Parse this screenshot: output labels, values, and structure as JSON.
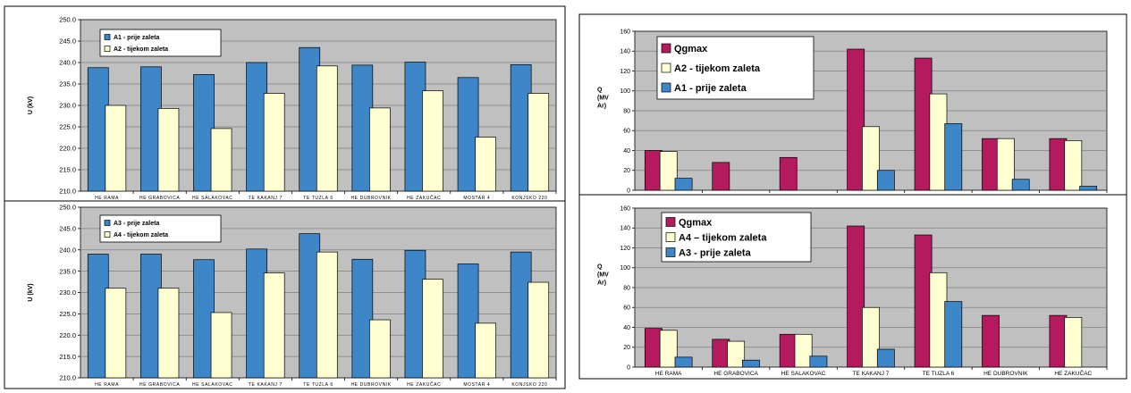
{
  "colors": {
    "blue": "#3d87c9",
    "cream": "#ffffd2",
    "magenta": "#b5195e",
    "plot_bg": "#c0c0c0",
    "grid": "#808080"
  },
  "chart_data": [
    {
      "id": "c1",
      "type": "bar",
      "ylabel": "U (kV)",
      "ylim": [
        210,
        250
      ],
      "yticks": [
        "210.0",
        "215.0",
        "220.0",
        "225.0",
        "230.0",
        "235.0",
        "240.0",
        "245.0",
        "250.0"
      ],
      "grid": true,
      "legend_position": "top-left",
      "categories": [
        "HE RAMA",
        "HE GRABOVICA",
        "HE SALAKOVAC",
        "TE KAKANJ 7",
        "TE TUZLA 6",
        "HE DUBROVNIK",
        "HE ZAKUČAC",
        "MOSTAR 4",
        "KONJSKO 220"
      ],
      "series": [
        {
          "name": "A1 - prije zaleta",
          "color": "#3d87c9",
          "values": [
            238.8,
            239.0,
            237.2,
            240.0,
            243.5,
            239.4,
            240.1,
            236.5,
            239.5
          ]
        },
        {
          "name": "A2 - tijekom zaleta",
          "color": "#ffffd2",
          "values": [
            230.0,
            229.3,
            224.6,
            232.8,
            239.2,
            229.4,
            233.4,
            222.6,
            232.8
          ]
        }
      ]
    },
    {
      "id": "c2",
      "type": "bar",
      "ylabel": "U (kV)",
      "ylim": [
        210,
        250
      ],
      "yticks": [
        "210.0",
        "215.0",
        "220.0",
        "225.0",
        "230.0",
        "235.0",
        "240.0",
        "245.0",
        "250.0"
      ],
      "grid": true,
      "legend_position": "top-left",
      "categories": [
        "HE RAMA",
        "HE GRABOVICA",
        "HE SALAKOVAC",
        "TE KAKANJ 7",
        "TE TUZLA 6",
        "HE DUBROVNIK",
        "HE ZAKUČAC",
        "MOSTAR 4",
        "KONJSKO 220"
      ],
      "series": [
        {
          "name": "A3 - prije zaleta",
          "color": "#3d87c9",
          "values": [
            239.0,
            239.0,
            237.7,
            240.2,
            243.8,
            237.8,
            239.9,
            236.7,
            239.5
          ]
        },
        {
          "name": "A4 - tijekom zaleta",
          "color": "#ffffd2",
          "values": [
            231.0,
            231.0,
            225.3,
            234.6,
            239.5,
            223.6,
            233.1,
            222.8,
            232.4
          ]
        }
      ]
    },
    {
      "id": "c3",
      "type": "bar",
      "ylabel": [
        "Q",
        "(MV",
        "Ar)"
      ],
      "ylim": [
        0,
        160
      ],
      "yticks": [
        "0",
        "20",
        "40",
        "60",
        "80",
        "100",
        "120",
        "140",
        "160"
      ],
      "grid": true,
      "legend_position": "top-left",
      "categories": [
        "HE RAMA",
        "HE GRABOVICA",
        "HE SALAKOVAC",
        "TE KAKANJ 7",
        "TE TUZLA 6",
        "HE DUBROVNIK",
        "HE ZAKUČAC"
      ],
      "show_xlabels": false,
      "series": [
        {
          "name": "Qgmax",
          "color": "#b5195e",
          "values": [
            40,
            28,
            33,
            142,
            133,
            52,
            52
          ]
        },
        {
          "name": "A2 - tijekom zaleta",
          "color": "#ffffd2",
          "values": [
            39,
            0,
            0,
            64,
            97,
            52,
            50
          ]
        },
        {
          "name": "A1 - prije zaleta",
          "color": "#3d87c9",
          "values": [
            12,
            0,
            0,
            20,
            67,
            11,
            4
          ]
        }
      ]
    },
    {
      "id": "c4",
      "type": "bar",
      "ylabel": [
        "Q",
        "(MV",
        "Ar)"
      ],
      "ylim": [
        0,
        160
      ],
      "yticks": [
        "0",
        "20",
        "40",
        "60",
        "80",
        "100",
        "120",
        "140",
        "160"
      ],
      "grid": true,
      "legend_position": "top-left",
      "categories": [
        "HE RAMA",
        "HE GRABOVICA",
        "HE SALAKOVAC",
        "TE KAKANJ 7",
        "TE TUZLA 6",
        "HE DUBROVNIK",
        "HE ZAKUČAC"
      ],
      "show_xlabels": true,
      "series": [
        {
          "name": "Qgmax",
          "color": "#b5195e",
          "values": [
            39,
            28,
            33,
            142,
            133,
            52,
            52
          ]
        },
        {
          "name": "A4 – tijekom zaleta",
          "color": "#ffffd2",
          "values": [
            37,
            26,
            33,
            60,
            95,
            0,
            50
          ]
        },
        {
          "name": "A3 - prije zaleta",
          "color": "#3d87c9",
          "values": [
            10,
            7,
            11,
            18,
            66,
            0,
            0
          ]
        }
      ]
    }
  ]
}
